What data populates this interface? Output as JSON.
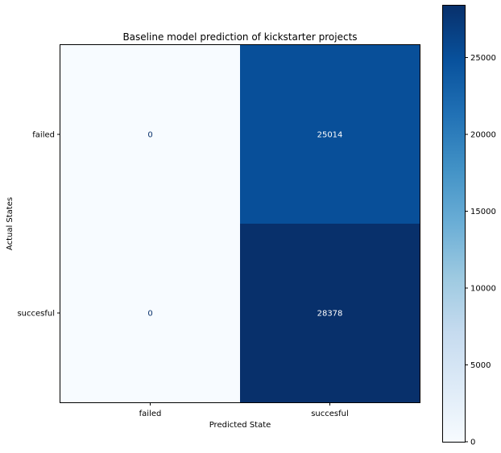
{
  "chart_data": {
    "type": "heatmap",
    "title": "Baseline model prediction of kickstarter projects",
    "xlabel": "Predicted State",
    "ylabel": "Actual States",
    "x_categories": [
      "failed",
      "succesful"
    ],
    "y_categories": [
      "failed",
      "succesful"
    ],
    "values": [
      [
        0,
        25014
      ],
      [
        0,
        28378
      ]
    ],
    "colormap": "Blues",
    "colorbar": {
      "min": 0,
      "max": 28378,
      "ticks": [
        0,
        5000,
        10000,
        15000,
        20000,
        25000
      ],
      "tick_labels": [
        "0",
        "5000",
        "10000",
        "15000",
        "20000",
        "25000"
      ]
    }
  }
}
